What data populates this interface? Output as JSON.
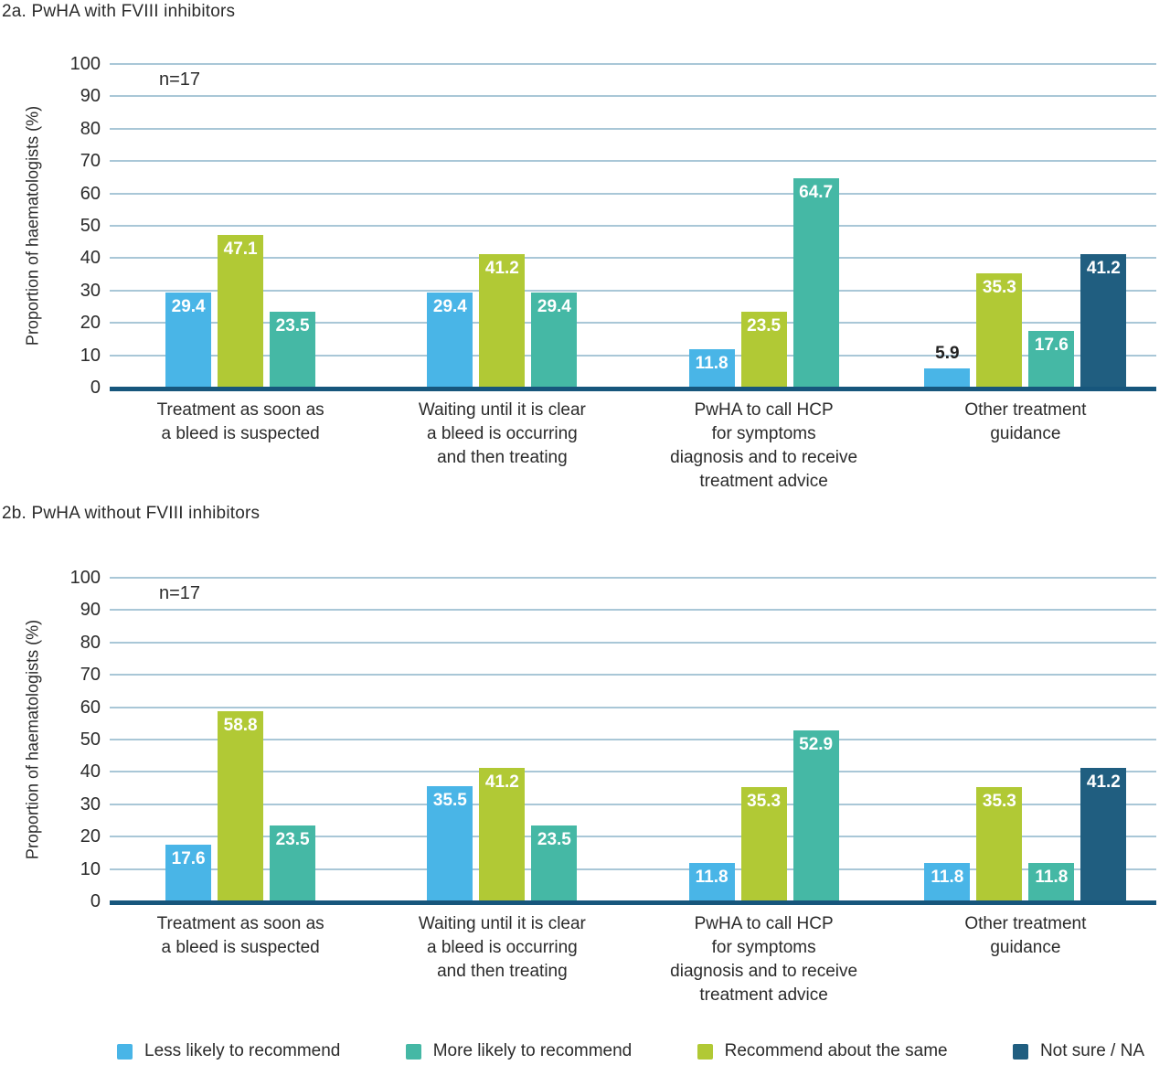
{
  "colors": {
    "less_likely_blue": "#49b5e7",
    "recommend_same_green": "#b1c935",
    "more_likely_teal": "#45b8a5",
    "not_sure_navy": "#205e80",
    "axis_baseline": "#17567c",
    "gridline": "#a9c7d7",
    "text": "#2b2b2b"
  },
  "legend": [
    {
      "label": "Less likely to recommend",
      "color": "#49b5e7"
    },
    {
      "label": "More likely to recommend",
      "color": "#45b8a5"
    },
    {
      "label": "Recommend about the same",
      "color": "#b1c935"
    },
    {
      "label": "Not sure / NA",
      "color": "#205e80"
    }
  ],
  "chart_data": [
    {
      "type": "bar",
      "title": "2a. PwHA with FVIII inhibitors",
      "annotation": "n=17",
      "ylabel": "Proportion of haematologists (%)",
      "ylim": [
        0,
        100
      ],
      "yticks": [
        0,
        10,
        20,
        30,
        40,
        50,
        60,
        70,
        80,
        90,
        100
      ],
      "grid": true,
      "legend_position": "bottom",
      "categories": [
        "Treatment as soon as\na bleed is suspected",
        "Waiting until it is clear\na bleed is occurring\nand then treating",
        "PwHA to call HCP\nfor symptoms\ndiagnosis and to receive\ntreatment advice",
        "Other treatment\nguidance"
      ],
      "series": [
        {
          "name": "Less likely to recommend",
          "color": "#49b5e7",
          "values": [
            29.4,
            29.4,
            11.8,
            5.9
          ]
        },
        {
          "name": "Recommend about the same",
          "color": "#b1c935",
          "values": [
            47.1,
            41.2,
            23.5,
            35.3
          ]
        },
        {
          "name": "More likely to recommend",
          "color": "#45b8a5",
          "values": [
            23.5,
            29.4,
            64.7,
            17.6
          ]
        },
        {
          "name": "Not sure / NA",
          "color": "#205e80",
          "values": [
            null,
            null,
            null,
            41.2
          ]
        }
      ]
    },
    {
      "type": "bar",
      "title": "2b. PwHA without FVIII inhibitors",
      "annotation": "n=17",
      "ylabel": "Proportion of haematologists (%)",
      "ylim": [
        0,
        100
      ],
      "yticks": [
        0,
        10,
        20,
        30,
        40,
        50,
        60,
        70,
        80,
        90,
        100
      ],
      "grid": true,
      "legend_position": "bottom",
      "categories": [
        "Treatment as soon as\na bleed is suspected",
        "Waiting until it is clear\na bleed is occurring\nand then treating",
        "PwHA to call HCP\nfor symptoms\ndiagnosis and to receive\ntreatment advice",
        "Other treatment\nguidance"
      ],
      "series": [
        {
          "name": "Less likely to recommend",
          "color": "#49b5e7",
          "values": [
            17.6,
            35.5,
            11.8,
            11.8
          ]
        },
        {
          "name": "Recommend about the same",
          "color": "#b1c935",
          "values": [
            58.8,
            41.2,
            35.3,
            35.3
          ]
        },
        {
          "name": "More likely to recommend",
          "color": "#45b8a5",
          "values": [
            23.5,
            23.5,
            52.9,
            11.8
          ]
        },
        {
          "name": "Not sure / NA",
          "color": "#205e80",
          "values": [
            null,
            null,
            null,
            41.2
          ]
        }
      ]
    }
  ]
}
